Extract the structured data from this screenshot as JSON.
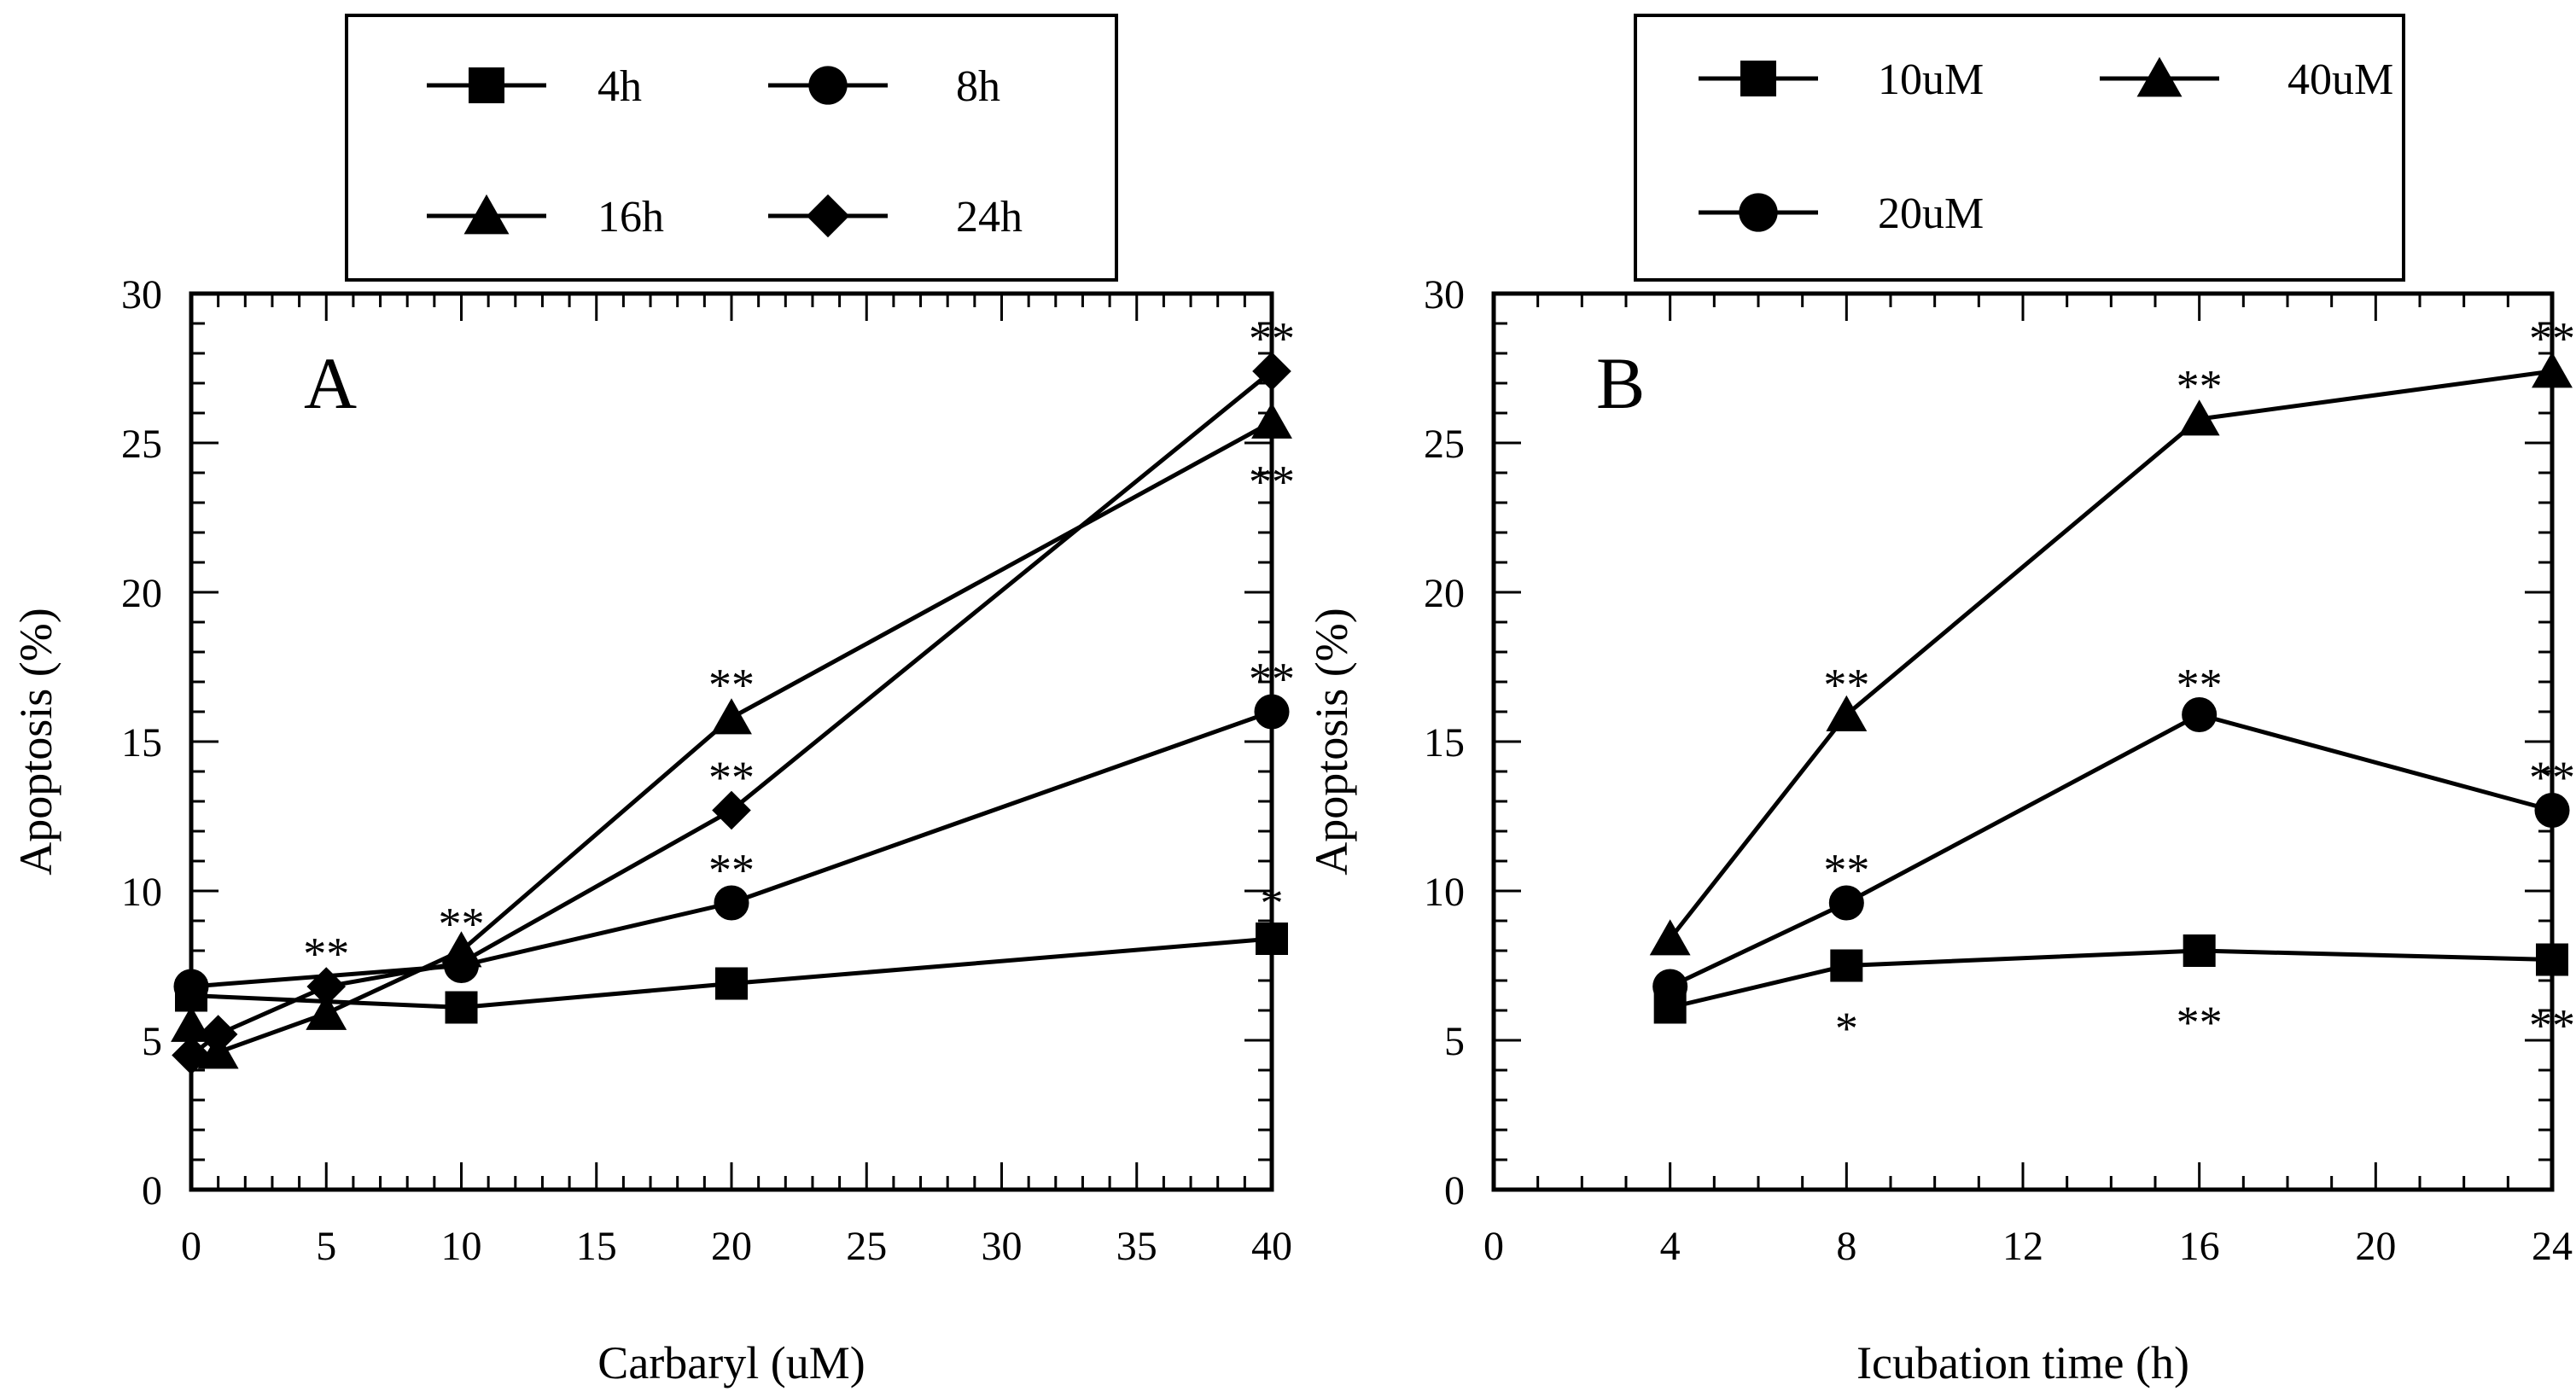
{
  "chart_data": [
    {
      "panel": "A",
      "type": "line",
      "xlabel": "Carbaryl (uM)",
      "ylabel": "Apoptosis (%)",
      "xlim": [
        0,
        40
      ],
      "ylim": [
        0,
        30
      ],
      "xticks": [
        0,
        5,
        10,
        15,
        20,
        25,
        30,
        35,
        40
      ],
      "yticks": [
        0,
        5,
        10,
        15,
        20,
        25,
        30
      ],
      "grid": false,
      "legend_position": "top",
      "series": [
        {
          "name": "4h",
          "marker": "square",
          "x": [
            0,
            10,
            20,
            40
          ],
          "y": [
            6.5,
            6.1,
            6.9,
            8.4
          ]
        },
        {
          "name": "8h",
          "marker": "circle",
          "x": [
            0,
            10,
            20,
            40
          ],
          "y": [
            6.8,
            7.5,
            9.6,
            16.0
          ]
        },
        {
          "name": "16h",
          "marker": "triangle",
          "x": [
            0,
            1,
            5,
            10,
            20,
            40
          ],
          "y": [
            5.5,
            4.6,
            5.9,
            8.0,
            15.8,
            25.7
          ]
        },
        {
          "name": "24h",
          "marker": "diamond",
          "x": [
            0,
            1,
            5,
            10,
            20,
            40
          ],
          "y": [
            4.5,
            5.2,
            6.8,
            7.6,
            12.7,
            27.4
          ]
        }
      ],
      "annotations": [
        {
          "text": "**",
          "x": 5,
          "y": 7.9
        },
        {
          "text": "**",
          "x": 10,
          "y": 8.9
        },
        {
          "text": "**",
          "x": 20,
          "y": 16.9
        },
        {
          "text": "**",
          "x": 20,
          "y": 13.8
        },
        {
          "text": "**",
          "x": 20,
          "y": 10.7
        },
        {
          "text": "**",
          "x": 40,
          "y": 28.5
        },
        {
          "text": "**",
          "x": 40,
          "y": 23.7
        },
        {
          "text": "**",
          "x": 40,
          "y": 17.1
        },
        {
          "text": "*",
          "x": 40,
          "y": 9.6
        }
      ]
    },
    {
      "panel": "B",
      "type": "line",
      "xlabel": "Icubation time (h)",
      "ylabel": "Apoptosis (%)",
      "xlim": [
        0,
        24
      ],
      "ylim": [
        0,
        30
      ],
      "xticks": [
        0,
        4,
        8,
        12,
        16,
        20,
        24
      ],
      "yticks": [
        0,
        5,
        10,
        15,
        20,
        25,
        30
      ],
      "grid": false,
      "legend_position": "top",
      "series": [
        {
          "name": "10uM",
          "marker": "square",
          "x": [
            4,
            8,
            16,
            24
          ],
          "y": [
            6.1,
            7.5,
            8.0,
            7.7
          ]
        },
        {
          "name": "20uM",
          "marker": "circle",
          "x": [
            4,
            8,
            16,
            24
          ],
          "y": [
            6.8,
            9.6,
            15.9,
            12.7
          ]
        },
        {
          "name": "40uM",
          "marker": "triangle",
          "x": [
            4,
            8,
            16,
            24
          ],
          "y": [
            8.4,
            15.9,
            25.8,
            27.4
          ]
        }
      ],
      "annotations": [
        {
          "text": "**",
          "x": 8,
          "y": 16.9
        },
        {
          "text": "**",
          "x": 8,
          "y": 10.7
        },
        {
          "text": "*",
          "x": 8,
          "y": 5.4
        },
        {
          "text": "**",
          "x": 16,
          "y": 26.9
        },
        {
          "text": "**",
          "x": 16,
          "y": 16.9
        },
        {
          "text": "**",
          "x": 16,
          "y": 5.6
        },
        {
          "text": "**",
          "x": 24,
          "y": 28.5
        },
        {
          "text": "**",
          "x": 24,
          "y": 13.8
        },
        {
          "text": "**",
          "x": 24,
          "y": 5.5
        }
      ]
    }
  ]
}
